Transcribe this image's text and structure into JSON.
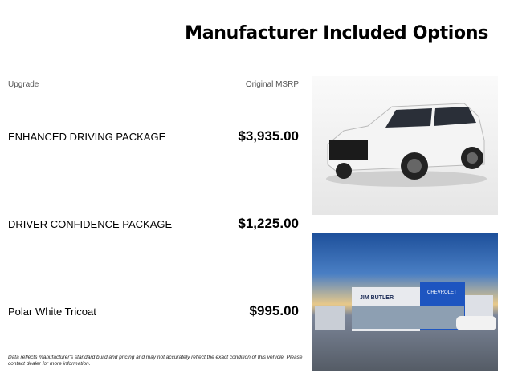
{
  "title": "Manufacturer Included Options",
  "headers": {
    "upgrade": "Upgrade",
    "msrp": "Original MSRP"
  },
  "options": [
    {
      "name": "ENHANCED DRIVING PACKAGE",
      "price": "$3,935.00"
    },
    {
      "name": "DRIVER CONFIDENCE PACKAGE",
      "price": "$1,225.00"
    },
    {
      "name": "Polar White Tricoat",
      "price": "$995.00"
    }
  ],
  "disclaimer": "Data reflects manufacturer's standard build and pricing and may not accurately reflect the exact condition of this vehicle. Please contact dealer for more information.",
  "photo_signs": {
    "dealer": "JIM BUTLER",
    "brand": "CHEVROLET"
  }
}
